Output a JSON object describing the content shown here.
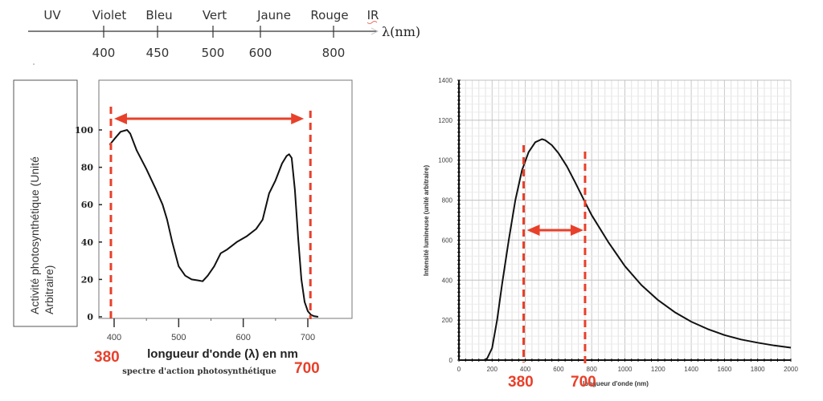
{
  "scale": {
    "bands": [
      "UV",
      "Violet",
      "Bleu",
      "Vert",
      "Jaune",
      "Rouge",
      "IR"
    ],
    "ticks": [
      "400",
      "450",
      "500",
      "600",
      "800"
    ],
    "axis_label": "λ(nm)"
  },
  "colors": {
    "accent_red": "#e8402a",
    "curve": "#111111",
    "grid": "#d8d8d8"
  },
  "chart_data": [
    {
      "type": "line",
      "title": "",
      "caption": "spectre d'action photosynthétique",
      "xlabel": "longueur d'onde (λ) en nm",
      "ylabel": "Activité photosynthétique (Unité Arbitraire)",
      "ylabel_lines": [
        "Activité photosynthétique (Unité",
        "Arbitraire)"
      ],
      "xlim": [
        395,
        740
      ],
      "ylim": [
        0,
        115
      ],
      "xticks": [
        "400",
        "500",
        "600",
        "700"
      ],
      "yticks": [
        "0",
        "20",
        "40",
        "60",
        "80",
        "100"
      ],
      "grid": false,
      "series": [
        {
          "name": "activité photosynthétique",
          "x": [
            393,
            400,
            410,
            420,
            425,
            435,
            450,
            465,
            475,
            482,
            490,
            500,
            510,
            520,
            530,
            537,
            545,
            555,
            565,
            575,
            590,
            605,
            620,
            630,
            640,
            650,
            660,
            667,
            671,
            675,
            680,
            685,
            690,
            695,
            700,
            705,
            710,
            716
          ],
          "values": [
            92,
            95,
            99,
            100,
            98,
            89,
            79,
            68,
            60,
            52,
            40,
            27,
            22,
            20,
            19.5,
            19,
            22,
            27,
            34,
            36,
            40,
            43,
            47,
            52,
            66,
            73,
            82,
            86,
            87,
            85,
            68,
            42,
            20,
            8,
            3,
            1,
            0.3,
            0
          ]
        }
      ],
      "annotations": {
        "range_start_label": "380",
        "range_end_label": "700",
        "range_start_x": 395,
        "range_end_x": 704,
        "arrow": "double-headed between the two dashed red lines"
      }
    },
    {
      "type": "line",
      "title": "",
      "xlabel": "longueur d'onde (nm)",
      "ylabel": "Intensité lumineuse (unité arbitraire)",
      "xlim": [
        0,
        2000
      ],
      "ylim": [
        0,
        1400
      ],
      "xticks": [
        "0",
        "200",
        "400",
        "600",
        "800",
        "1000",
        "1200",
        "1400",
        "1600",
        "1800",
        "2000"
      ],
      "yticks": [
        "0",
        "200",
        "400",
        "600",
        "800",
        "1000",
        "1200",
        "1400"
      ],
      "grid": true,
      "series": [
        {
          "name": "intensité lumineuse",
          "x": [
            0,
            100,
            150,
            170,
            200,
            230,
            260,
            300,
            340,
            380,
            420,
            460,
            500,
            520,
            560,
            600,
            650,
            700,
            760,
            800,
            900,
            1000,
            1100,
            1200,
            1300,
            1400,
            1500,
            1600,
            1700,
            1800,
            1900,
            2000
          ],
          "values": [
            0,
            0,
            0,
            8,
            60,
            200,
            380,
            600,
            800,
            950,
            1040,
            1090,
            1105,
            1100,
            1075,
            1035,
            970,
            890,
            790,
            725,
            590,
            470,
            375,
            300,
            240,
            192,
            155,
            125,
            103,
            87,
            73,
            62
          ]
        }
      ],
      "annotations": {
        "range_start_label": "380",
        "range_end_label": "700",
        "range_start_x": 390,
        "range_end_x": 760,
        "arrow": "double-headed between the two dashed red lines"
      }
    }
  ]
}
